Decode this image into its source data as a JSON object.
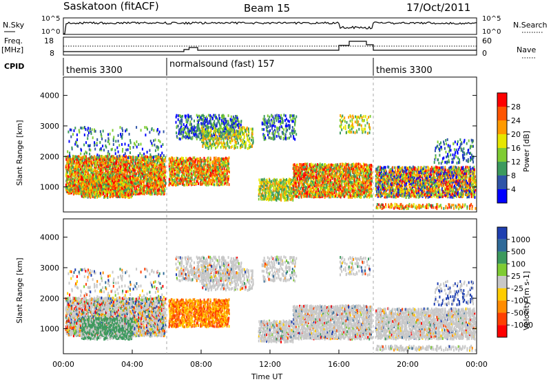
{
  "header": {
    "station": "Saskatoon (fitACF)",
    "beam": "Beam 15",
    "date": "17/Oct/2011"
  },
  "noise_panel": {
    "left_label": "N.Sky",
    "right_label": "N.Search",
    "left_ticks": [
      "10^5",
      "10^0"
    ],
    "right_ticks": [
      "10^5",
      "10^0"
    ]
  },
  "freq_panel": {
    "left_label_1": "Freq.",
    "left_label_2": "[MHz]",
    "left_ticks": [
      "18",
      "8"
    ],
    "right_label": "Nave",
    "right_ticks": [
      "60",
      "0"
    ]
  },
  "cpid_panel": {
    "label": "CPID",
    "programs": [
      {
        "name": "themis 3300",
        "start_hour": 0
      },
      {
        "name": "normalsound (fast) 157",
        "start_hour": 6
      },
      {
        "name": "themis 3300",
        "start_hour": 18
      }
    ]
  },
  "chart_data": [
    {
      "type": "heatmap",
      "quantity": "Power",
      "ylabel": "Slant Range [km]",
      "ylim": [
        180,
        4600
      ],
      "yticks": [
        "4000",
        "3000",
        "2000",
        "1000"
      ],
      "xlim": [
        0,
        24
      ],
      "colorbar_label": "Power [dB]",
      "colorbar_ticks": [
        "28",
        "24",
        "20",
        "16",
        "12",
        "8",
        "4"
      ],
      "colorbar_colors": [
        "#ff0000",
        "#ff5500",
        "#ff9a00",
        "#e6e600",
        "#7fcc33",
        "#3c9a5e",
        "#2f55a8",
        "#0000ff"
      ]
    },
    {
      "type": "heatmap",
      "quantity": "Velocity",
      "ylabel": "Slant Range [km]",
      "ylim": [
        180,
        4600
      ],
      "yticks": [
        "4000",
        "3000",
        "2000",
        "1000"
      ],
      "xlim": [
        0,
        24
      ],
      "xticks": [
        "00:00",
        "04:00",
        "08:00",
        "12:00",
        "16:00",
        "20:00",
        "00:00"
      ],
      "xlabel": "Time UT",
      "colorbar_label": "Velocity [m s-1]",
      "colorbar_ticks": [
        "1000",
        "500",
        "100",
        "25",
        "-25",
        "-100",
        "-500",
        "-1000"
      ],
      "colorbar_colors": [
        "#1f3fb0",
        "#2f6a99",
        "#3c9a5e",
        "#7fcc33",
        "#c8c8c8",
        "#ffcc00",
        "#ff8c00",
        "#ff4000",
        "#ff0000"
      ]
    }
  ]
}
